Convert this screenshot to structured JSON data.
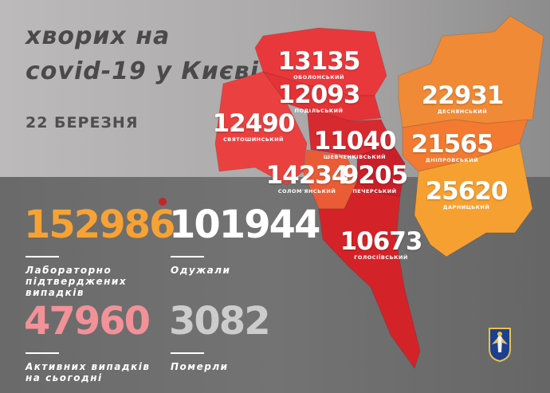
{
  "header": {
    "title_line1": "хворих на",
    "title_line2": "covid-19 у Києві",
    "date": "22 БЕРЕЗНЯ"
  },
  "districts": [
    {
      "name": "ОБОЛОНСЬКИЙ",
      "cases": "13135",
      "color": "#e9383b"
    },
    {
      "name": "ПОДІЛЬСЬКИЙ",
      "cases": "12093",
      "color": "#e33336"
    },
    {
      "name": "СВЯТОШИНСЬКИЙ",
      "cases": "12490",
      "color": "#ea4140"
    },
    {
      "name": "ШЕВЧЕНКІВСЬКИЙ",
      "cases": "11040",
      "color": "#d62a30"
    },
    {
      "name": "СОЛОМ'ЯНСЬКИЙ",
      "cases": "14234",
      "color": "#ea5c36"
    },
    {
      "name": "ПЕЧЕРСЬКИЙ",
      "cases": "9205",
      "color": "#c8202a"
    },
    {
      "name": "ГОЛОСІЇВСЬКИЙ",
      "cases": "10673",
      "color": "#d42328"
    },
    {
      "name": "ДЕСНЯНСЬКИЙ",
      "cases": "22931",
      "color": "#f08a36"
    },
    {
      "name": "ДНІПРОВСЬКИЙ",
      "cases": "21565",
      "color": "#f27a31"
    },
    {
      "name": "ДАРНИЦЬКИЙ",
      "cases": "25620",
      "color": "#f7a032"
    }
  ],
  "stats": {
    "confirmed": {
      "value": "152986",
      "caption_lines": [
        "Лабораторно",
        "підтверджених",
        "випадків"
      ],
      "color": "#f7a234"
    },
    "recovered": {
      "value": "101944",
      "caption_lines": [
        "Одужали"
      ],
      "color": "#ffffff"
    },
    "active": {
      "value": "47960",
      "caption_lines": [
        "Активних випадків",
        "на сьогодні"
      ],
      "color": "#f39198"
    },
    "deaths": {
      "value": "3082",
      "caption_lines": [
        "Померли"
      ],
      "color": "#cccccc"
    }
  },
  "icons": {
    "emblem": "kyiv-coat-of-arms-icon"
  }
}
